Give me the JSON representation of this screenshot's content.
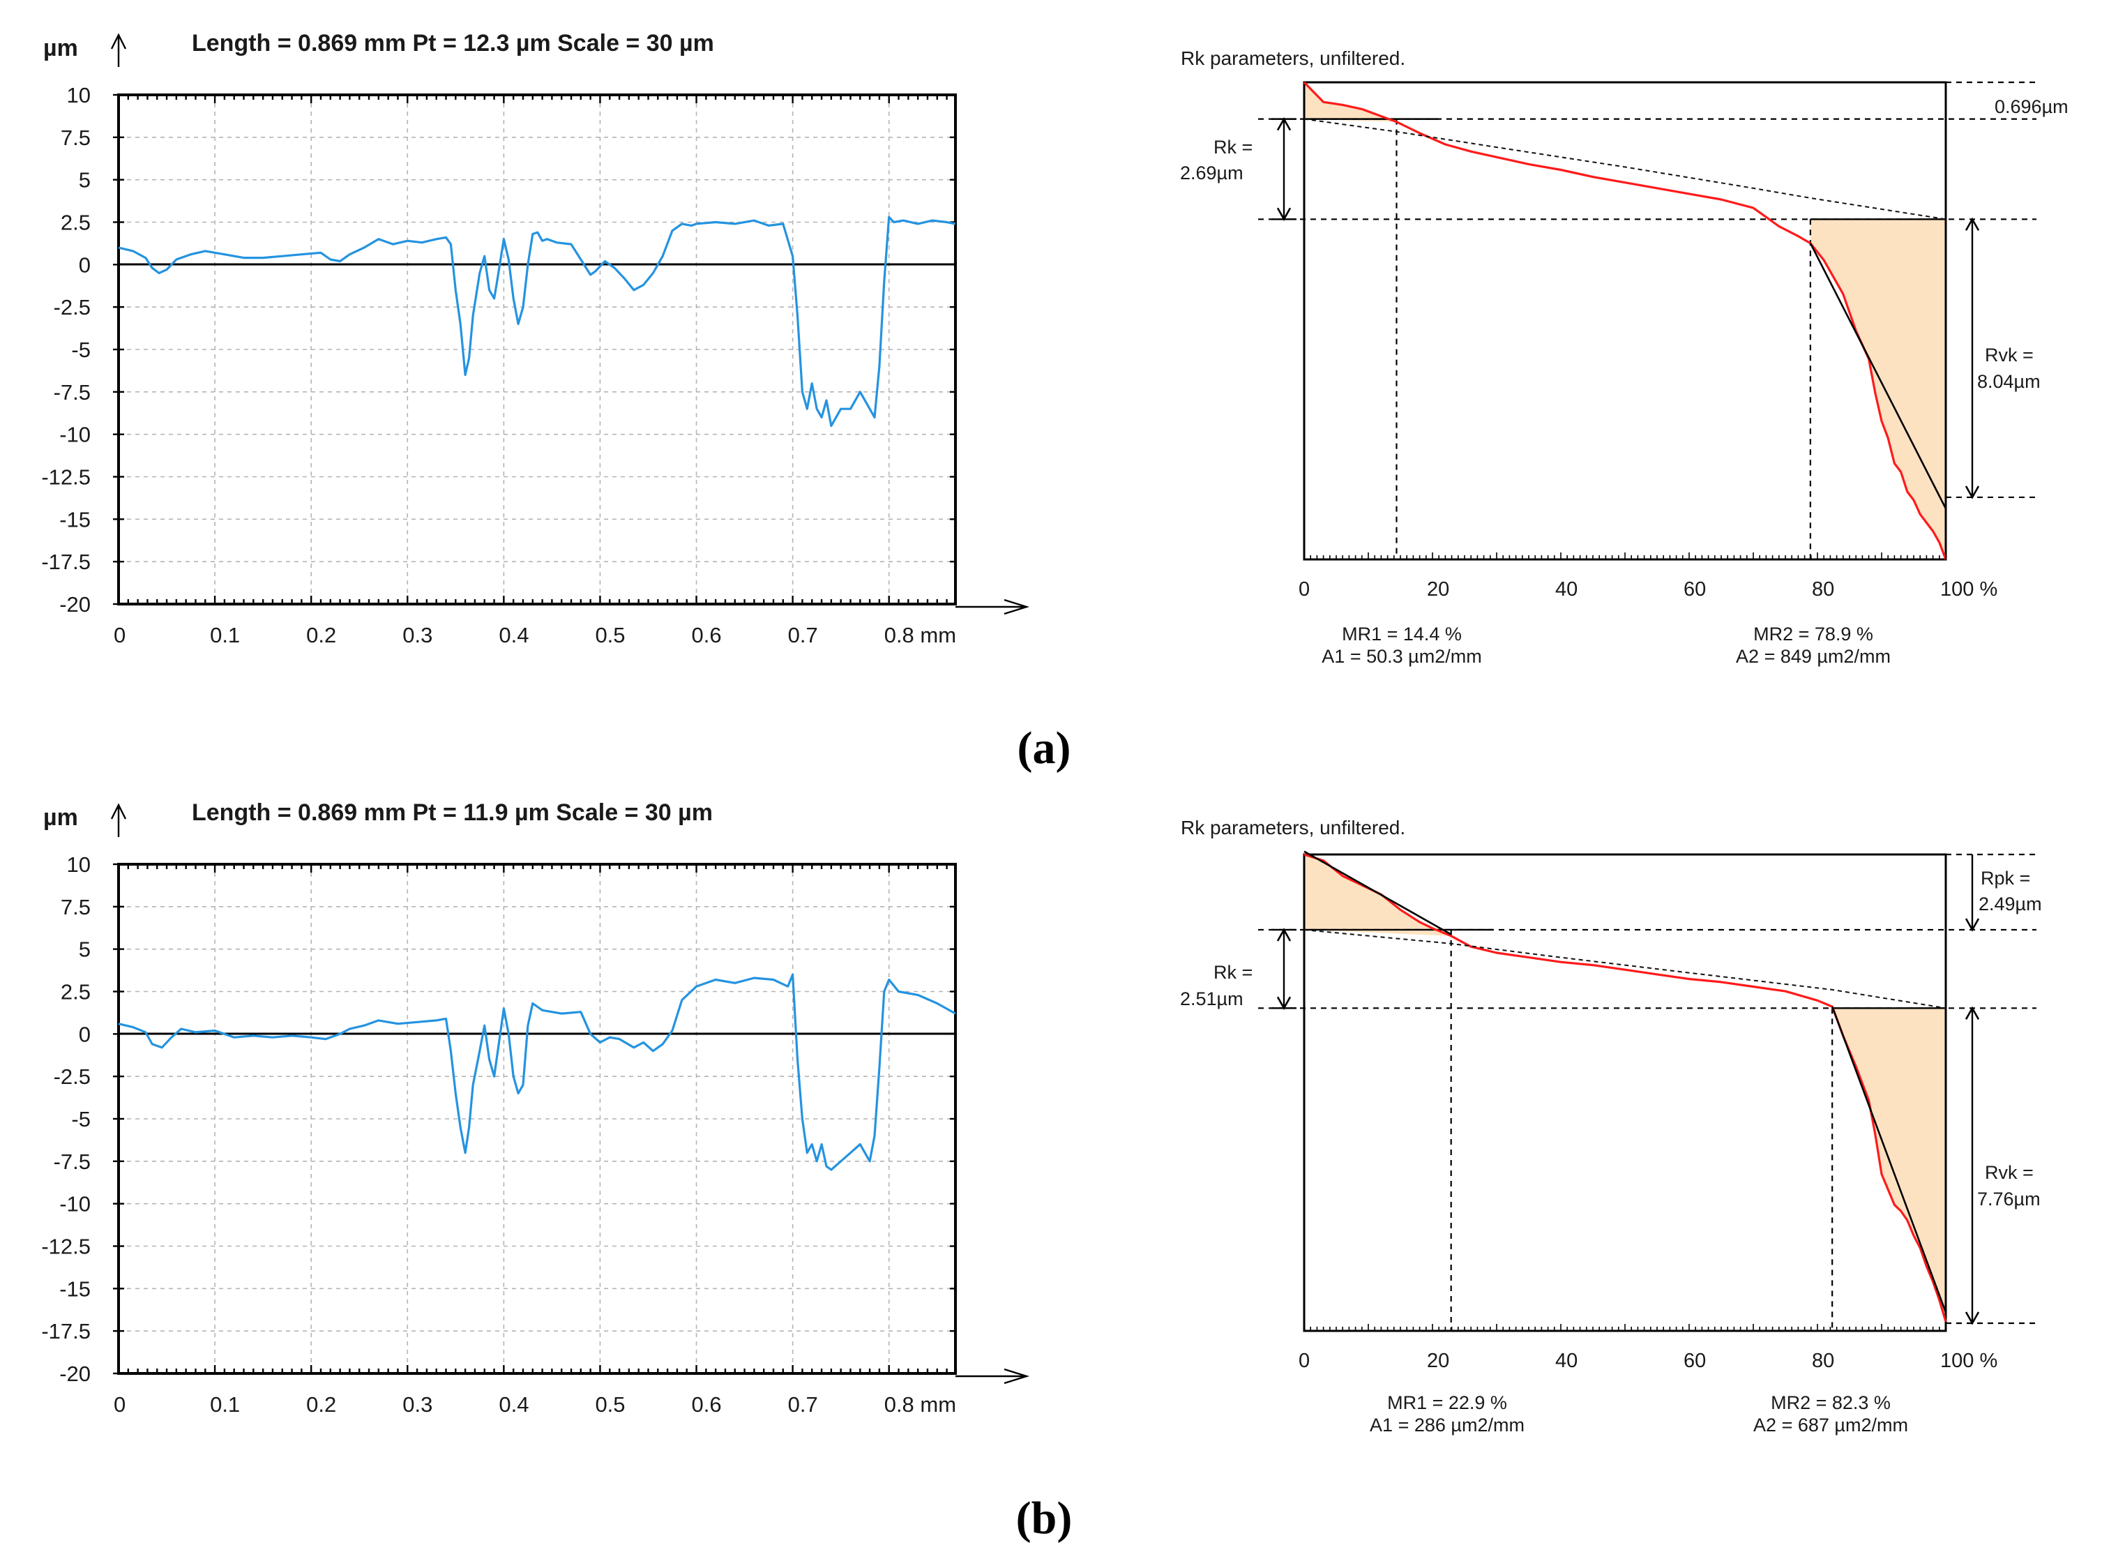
{
  "figure": {
    "caption_a": "(a)",
    "caption_b": "(b)"
  },
  "chart_data": [
    {
      "type": "line",
      "panel": "a-left",
      "header": {
        "ylabel": "µm",
        "text": "Length = 0.869 mm   Pt = 12.3 µm   Scale = 30 µm"
      },
      "xunit": "mm",
      "xlim": [
        0,
        0.869
      ],
      "ylim": [
        -20,
        10
      ],
      "xticks": [
        0,
        0.1,
        0.2,
        0.3,
        0.4,
        0.5,
        0.6,
        0.7,
        0.8
      ],
      "xtick_labels": [
        "0",
        "0.1",
        "0.2",
        "0.3",
        "0.4",
        "0.5",
        "0.6",
        "0.7",
        "0.8 mm"
      ],
      "yticks": [
        10,
        7.5,
        5,
        2.5,
        0,
        -2.5,
        -5,
        -7.5,
        -10,
        -12.5,
        -15,
        -17.5,
        -20
      ],
      "ytick_labels": [
        "10",
        "7.5",
        "5",
        "2.5",
        "0",
        "-2.5",
        "-5",
        "-7.5",
        "-10",
        "-12.5",
        "-15",
        "-17.5",
        "-20"
      ],
      "series": [
        {
          "name": "profile",
          "color": "#2493e0",
          "x": [
            0,
            0.015,
            0.028,
            0.035,
            0.042,
            0.05,
            0.06,
            0.075,
            0.09,
            0.11,
            0.13,
            0.15,
            0.17,
            0.19,
            0.21,
            0.22,
            0.23,
            0.24,
            0.255,
            0.27,
            0.285,
            0.3,
            0.315,
            0.33,
            0.34,
            0.345,
            0.35,
            0.355,
            0.36,
            0.364,
            0.368,
            0.375,
            0.38,
            0.385,
            0.39,
            0.393,
            0.4,
            0.405,
            0.41,
            0.415,
            0.42,
            0.425,
            0.43,
            0.435,
            0.44,
            0.445,
            0.455,
            0.47,
            0.48,
            0.49,
            0.495,
            0.505,
            0.515,
            0.525,
            0.535,
            0.545,
            0.555,
            0.565,
            0.575,
            0.585,
            0.595,
            0.6,
            0.62,
            0.64,
            0.66,
            0.675,
            0.69,
            0.7,
            0.705,
            0.71,
            0.715,
            0.72,
            0.725,
            0.73,
            0.735,
            0.74,
            0.75,
            0.76,
            0.77,
            0.78,
            0.785,
            0.79,
            0.795,
            0.8,
            0.805,
            0.815,
            0.83,
            0.845,
            0.86,
            0.869
          ],
          "y": [
            1.0,
            0.8,
            0.4,
            -0.2,
            -0.5,
            -0.3,
            0.3,
            0.6,
            0.8,
            0.6,
            0.4,
            0.4,
            0.5,
            0.6,
            0.7,
            0.3,
            0.2,
            0.6,
            1.0,
            1.5,
            1.2,
            1.4,
            1.3,
            1.5,
            1.6,
            1.2,
            -1.5,
            -3.5,
            -6.5,
            -5.5,
            -3.0,
            -0.5,
            0.5,
            -1.5,
            -2.0,
            -1.0,
            1.5,
            0.3,
            -2.0,
            -3.5,
            -2.5,
            0.0,
            1.8,
            1.9,
            1.4,
            1.5,
            1.3,
            1.2,
            0.3,
            -0.6,
            -0.4,
            0.2,
            -0.2,
            -0.8,
            -1.5,
            -1.2,
            -0.5,
            0.5,
            2.0,
            2.4,
            2.3,
            2.4,
            2.5,
            2.4,
            2.6,
            2.3,
            2.4,
            0.5,
            -3.0,
            -7.5,
            -8.5,
            -7.0,
            -8.5,
            -9.0,
            -8.0,
            -9.5,
            -8.5,
            -8.5,
            -7.5,
            -8.5,
            -9.0,
            -6.0,
            -1.0,
            2.8,
            2.5,
            2.6,
            2.4,
            2.6,
            2.5,
            2.4
          ]
        }
      ]
    },
    {
      "type": "line",
      "panel": "a-right",
      "title": "Rk parameters, unfiltered.",
      "xunit": "%",
      "xticks": [
        0,
        20,
        40,
        60,
        80,
        100
      ],
      "xtick_labels": [
        "0",
        "20",
        "40",
        "60",
        "80",
        "100 %"
      ],
      "rpk_text": "0.696µm",
      "rk_text": "Rk =\n2.69µm",
      "rvk_text": "Rvk =\n8.04µm",
      "mr1": 14.4,
      "mr2": 78.9,
      "stats_left": [
        "MR1 = 14.4 %",
        "A1 = 50.3 µm2/mm"
      ],
      "stats_right": [
        "MR2 = 78.9 %",
        "A2 = 849 µm2/mm"
      ],
      "series": [
        {
          "name": "bearing curve",
          "color": "#ff1a1a",
          "x": [
            0,
            3,
            6,
            9,
            12,
            14.4,
            18,
            22,
            26,
            30,
            35,
            40,
            45,
            50,
            55,
            60,
            65,
            70,
            74,
            77,
            78.9,
            81,
            84,
            86,
            88,
            89,
            90,
            91,
            92,
            93,
            94,
            95,
            96,
            97,
            98,
            99,
            100
          ],
          "y": [
            12.3,
            11.6,
            11.5,
            11.35,
            11.1,
            10.9,
            10.5,
            10.1,
            9.85,
            9.65,
            9.4,
            9.2,
            8.95,
            8.75,
            8.55,
            8.35,
            8.15,
            7.85,
            7.2,
            6.85,
            6.6,
            6.0,
            4.8,
            3.5,
            2.5,
            1.3,
            0.3,
            -0.3,
            -1.2,
            -1.5,
            -2.2,
            -2.5,
            -3.0,
            -3.3,
            -3.6,
            -4.0,
            -4.6
          ]
        },
        {
          "name": "equivalent straight line",
          "color": "#000000",
          "x": [
            0,
            14.4,
            30,
            50,
            70,
            78.9,
            100
          ],
          "y": [
            11.0,
            10.55,
            10.0,
            9.3,
            8.55,
            8.2,
            7.45
          ]
        },
        {
          "name": "valley fit line",
          "color": "#000000",
          "x": [
            78.9,
            100
          ],
          "y": [
            6.6,
            -2.8
          ]
        }
      ]
    },
    {
      "type": "line",
      "panel": "b-left",
      "header": {
        "ylabel": "µm",
        "text": "Length = 0.869 mm   Pt = 11.9 µm   Scale = 30 µm"
      },
      "xunit": "mm",
      "xlim": [
        0,
        0.869
      ],
      "ylim": [
        -20,
        10
      ],
      "xticks": [
        0,
        0.1,
        0.2,
        0.3,
        0.4,
        0.5,
        0.6,
        0.7,
        0.8
      ],
      "xtick_labels": [
        "0",
        "0.1",
        "0.2",
        "0.3",
        "0.4",
        "0.5",
        "0.6",
        "0.7",
        "0.8 mm"
      ],
      "yticks": [
        10,
        7.5,
        5,
        2.5,
        0,
        -2.5,
        -5,
        -7.5,
        -10,
        -12.5,
        -15,
        -17.5,
        -20
      ],
      "ytick_labels": [
        "10",
        "7.5",
        "5",
        "2.5",
        "0",
        "-2.5",
        "-5",
        "-7.5",
        "-10",
        "-12.5",
        "-15",
        "-17.5",
        "-20"
      ],
      "series": [
        {
          "name": "profile",
          "color": "#2493e0",
          "x": [
            0,
            0.015,
            0.028,
            0.035,
            0.045,
            0.055,
            0.065,
            0.08,
            0.1,
            0.12,
            0.14,
            0.16,
            0.18,
            0.2,
            0.215,
            0.23,
            0.24,
            0.255,
            0.27,
            0.29,
            0.31,
            0.33,
            0.34,
            0.345,
            0.35,
            0.355,
            0.36,
            0.364,
            0.368,
            0.375,
            0.38,
            0.385,
            0.39,
            0.395,
            0.4,
            0.405,
            0.41,
            0.415,
            0.42,
            0.425,
            0.43,
            0.44,
            0.46,
            0.48,
            0.49,
            0.5,
            0.51,
            0.52,
            0.535,
            0.545,
            0.555,
            0.565,
            0.575,
            0.585,
            0.6,
            0.62,
            0.64,
            0.66,
            0.68,
            0.695,
            0.7,
            0.705,
            0.71,
            0.715,
            0.72,
            0.725,
            0.73,
            0.735,
            0.74,
            0.75,
            0.76,
            0.77,
            0.775,
            0.78,
            0.785,
            0.79,
            0.795,
            0.8,
            0.81,
            0.83,
            0.85,
            0.869
          ],
          "y": [
            0.6,
            0.4,
            0.1,
            -0.6,
            -0.8,
            -0.2,
            0.3,
            0.1,
            0.2,
            -0.2,
            -0.1,
            -0.2,
            -0.1,
            -0.2,
            -0.3,
            0.0,
            0.3,
            0.5,
            0.8,
            0.6,
            0.7,
            0.8,
            0.9,
            -1.0,
            -3.5,
            -5.5,
            -7.0,
            -5.5,
            -3.0,
            -1.0,
            0.5,
            -1.5,
            -2.5,
            -0.5,
            1.5,
            0.0,
            -2.5,
            -3.5,
            -3.0,
            0.5,
            1.8,
            1.4,
            1.2,
            1.3,
            0.0,
            -0.5,
            -0.2,
            -0.3,
            -0.8,
            -0.5,
            -1.0,
            -0.6,
            0.2,
            2.0,
            2.8,
            3.2,
            3.0,
            3.3,
            3.2,
            2.8,
            3.5,
            -1.5,
            -5.0,
            -7.0,
            -6.5,
            -7.5,
            -6.5,
            -7.8,
            -8.0,
            -7.5,
            -7.0,
            -6.5,
            -7.0,
            -7.5,
            -6.0,
            -2.0,
            2.5,
            3.2,
            2.5,
            2.3,
            1.8,
            1.2
          ]
        }
      ]
    },
    {
      "type": "line",
      "panel": "b-right",
      "title": "Rk parameters, unfiltered.",
      "xunit": "%",
      "xticks": [
        0,
        20,
        40,
        60,
        80,
        100
      ],
      "xtick_labels": [
        "0",
        "20",
        "40",
        "60",
        "80",
        "100 %"
      ],
      "rpk_text": "Rpk =\n2.49µm",
      "rk_text": "Rk =\n2.51µm",
      "rvk_text": "Rvk =\n7.76µm",
      "mr1": 22.9,
      "mr2": 82.3,
      "stats_left": [
        "MR1 = 22.9 %",
        "A1 = 286 µm2/mm"
      ],
      "stats_right": [
        "MR2 = 82.3 %",
        "A2 = 687 µm2/mm"
      ],
      "series": [
        {
          "name": "bearing curve",
          "color": "#ff1a1a",
          "x": [
            0,
            3,
            6,
            9,
            12,
            15,
            18,
            20,
            22.9,
            26,
            30,
            35,
            40,
            45,
            50,
            55,
            60,
            65,
            70,
            75,
            80,
            82.3,
            84,
            86,
            88,
            89,
            90,
            91,
            92,
            93,
            94,
            95,
            96,
            97,
            98,
            99,
            100
          ],
          "y": [
            11.9,
            11.7,
            11.2,
            10.9,
            10.6,
            10.1,
            9.7,
            9.5,
            9.25,
            8.9,
            8.7,
            8.55,
            8.4,
            8.3,
            8.15,
            8.0,
            7.85,
            7.75,
            7.6,
            7.45,
            7.15,
            6.95,
            6.0,
            5.0,
            3.9,
            2.8,
            1.5,
            1.0,
            0.5,
            0.3,
            0.0,
            -0.5,
            -0.9,
            -1.5,
            -2.0,
            -2.6,
            -3.3
          ]
        },
        {
          "name": "equivalent straight line",
          "color": "#000000",
          "x": [
            0,
            22.9,
            40,
            60,
            82.3,
            100
          ],
          "y": [
            9.45,
            9.0,
            8.55,
            8.05,
            7.5,
            6.9
          ]
        },
        {
          "name": "peak fit line",
          "color": "#000000",
          "x": [
            0,
            22.9
          ],
          "y": [
            12.0,
            9.3
          ]
        },
        {
          "name": "valley fit line",
          "color": "#000000",
          "x": [
            82.3,
            100
          ],
          "y": [
            6.95,
            -3.0
          ]
        }
      ]
    }
  ]
}
